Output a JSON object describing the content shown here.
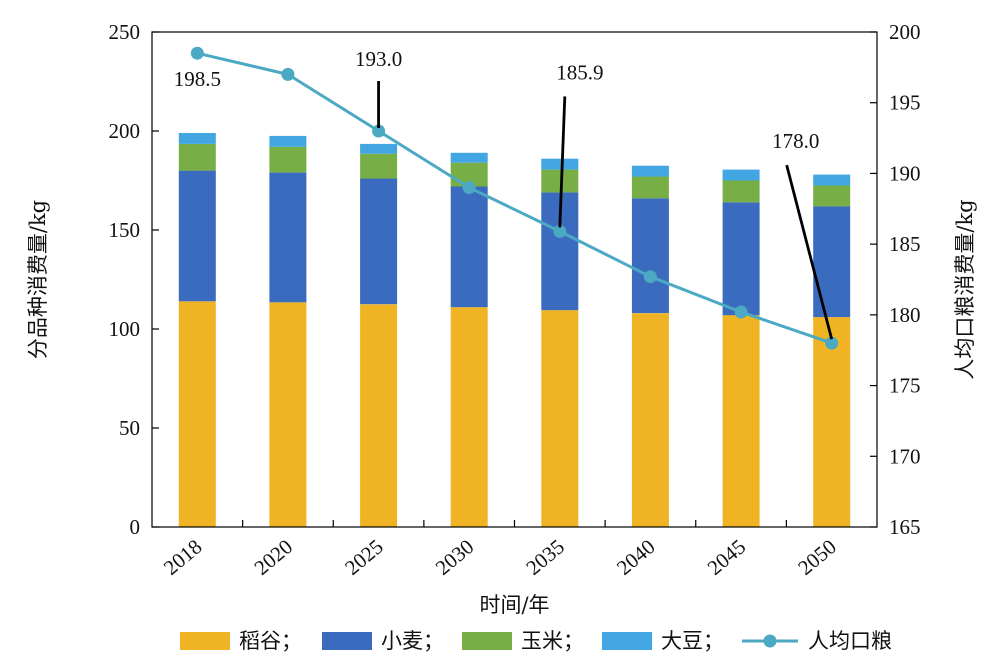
{
  "chart_data": {
    "type": "bar",
    "stacked": true,
    "categories": [
      "2018",
      "2020",
      "2025",
      "2030",
      "2035",
      "2040",
      "2045",
      "2050"
    ],
    "series": [
      {
        "name": "稻谷；",
        "values": [
          114,
          113.5,
          112.5,
          111,
          109.5,
          108,
          107,
          106
        ],
        "color": "#F0B323"
      },
      {
        "name": "小麦；",
        "values": [
          66,
          65.5,
          63.5,
          61,
          59.5,
          58,
          57,
          56
        ],
        "color": "#3A6BBE"
      },
      {
        "name": "玉米；",
        "values": [
          13.5,
          13,
          12.5,
          12,
          11.5,
          11,
          11,
          10.5
        ],
        "color": "#78AE46"
      },
      {
        "name": "大豆；",
        "values": [
          5.5,
          5.5,
          5,
          5,
          5.5,
          5.5,
          5.5,
          5.5
        ],
        "color": "#41A6E2"
      }
    ],
    "line_series": {
      "name": "人均口粮",
      "axis": "right",
      "values": [
        198.5,
        197.0,
        193.0,
        189.0,
        185.9,
        182.7,
        180.2,
        178.0
      ],
      "color": "#4BA9C3"
    },
    "annotations": [
      {
        "category": "2018",
        "text": "198.5"
      },
      {
        "category": "2025",
        "text": "193.0"
      },
      {
        "category": "2035",
        "text": "185.9"
      },
      {
        "category": "2050",
        "text": "178.0"
      }
    ],
    "xlabel": "时间/年",
    "ylabel": "分品种消费量/kg",
    "y2label": "人均口粮消费量/kg",
    "ylim": [
      0,
      250
    ],
    "y2lim": [
      165,
      200
    ],
    "yticks": [
      "0",
      "50",
      "100",
      "150",
      "200",
      "250"
    ],
    "y2ticks": [
      "165",
      "170",
      "175",
      "180",
      "185",
      "190",
      "195",
      "200"
    ],
    "grid": false,
    "legend_position": "bottom"
  }
}
